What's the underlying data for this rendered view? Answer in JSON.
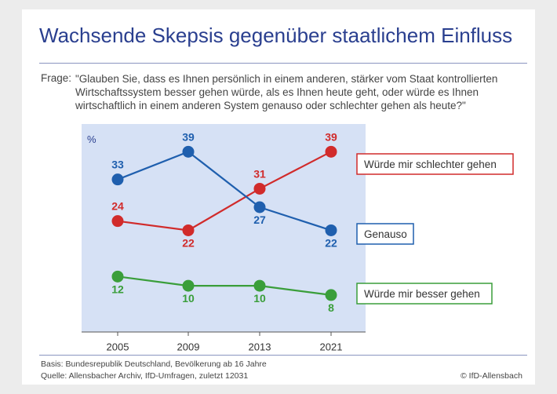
{
  "title": "Wachsende Skepsis gegenüber staatlichem Einfluss",
  "question": {
    "label": "Frage:",
    "text": "\"Glauben Sie, dass es Ihnen persönlich in einem anderen, stärker vom Staat kontrollierten Wirtschaftssystem besser gehen würde, als es Ihnen heute geht, oder würde es Ihnen wirtschaftlich in einem anderen System genauso oder schlechter gehen als heute?\""
  },
  "chart_data": {
    "type": "line",
    "unit_label": "%",
    "x": [
      "2005",
      "2009",
      "2013",
      "2021"
    ],
    "ylim": [
      0,
      45
    ],
    "series": [
      {
        "name": "Würde mir schlechter gehen",
        "color": "#d12b2b",
        "values": [
          24,
          22,
          31,
          39
        ]
      },
      {
        "name": "Genauso",
        "color": "#1f5fae",
        "values": [
          33,
          39,
          27,
          22
        ]
      },
      {
        "name": "Würde mir besser gehen",
        "color": "#3a9e3a",
        "values": [
          12,
          10,
          10,
          8
        ]
      }
    ]
  },
  "footer": {
    "basis": "Basis: Bundesrepublik Deutschland, Bevölkerung ab 16 Jahre",
    "source": "Quelle: Allensbacher Archiv, IfD-Umfragen, zuletzt 12031",
    "copyright": "© IfD-Allensbach"
  }
}
